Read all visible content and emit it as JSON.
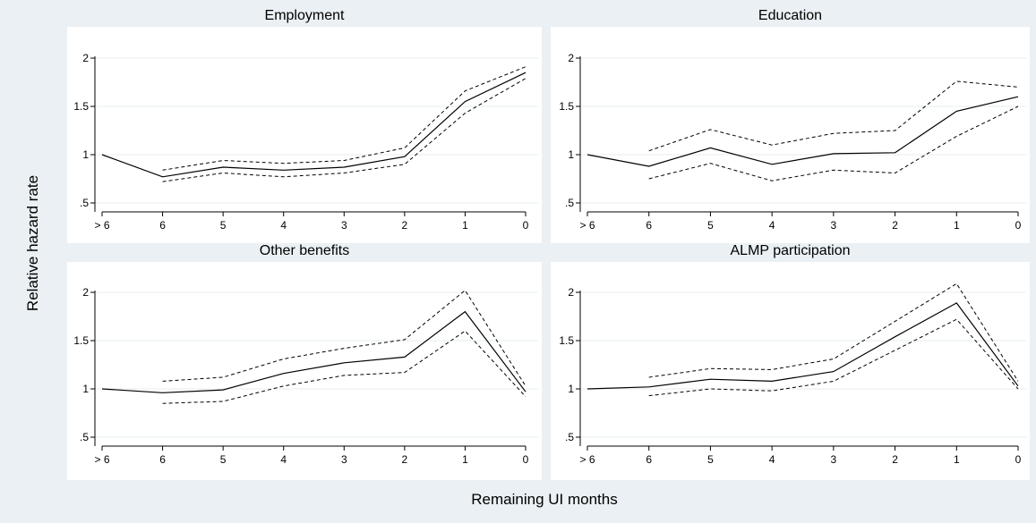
{
  "figure": {
    "ylabel": "Relative hazard rate",
    "xlabel": "Remaining UI months"
  },
  "chart_data": [
    {
      "type": "line",
      "title": "Employment",
      "categories": [
        "> 6",
        "6",
        "5",
        "4",
        "3",
        "2",
        "1",
        "0"
      ],
      "ylim": [
        0.5,
        2
      ],
      "yticks": [
        ".5",
        "1",
        "1.5",
        "2"
      ],
      "grid": true,
      "series": [
        {
          "role": "estimate",
          "values": [
            1.0,
            0.77,
            0.87,
            0.84,
            0.87,
            0.98,
            1.55,
            1.85
          ]
        },
        {
          "role": "upper-ci",
          "values": [
            null,
            0.84,
            0.94,
            0.91,
            0.94,
            1.07,
            1.66,
            1.91
          ]
        },
        {
          "role": "lower-ci",
          "values": [
            null,
            0.72,
            0.81,
            0.77,
            0.81,
            0.9,
            1.43,
            1.79
          ]
        }
      ]
    },
    {
      "type": "line",
      "title": "Education",
      "categories": [
        "> 6",
        "6",
        "5",
        "4",
        "3",
        "2",
        "1",
        "0"
      ],
      "ylim": [
        0.5,
        2
      ],
      "yticks": [
        ".5",
        "1",
        "1.5",
        "2"
      ],
      "grid": true,
      "series": [
        {
          "role": "estimate",
          "values": [
            1.0,
            0.88,
            1.07,
            0.9,
            1.01,
            1.02,
            1.45,
            1.6
          ]
        },
        {
          "role": "upper-ci",
          "values": [
            null,
            1.04,
            1.26,
            1.1,
            1.22,
            1.25,
            1.76,
            1.7
          ]
        },
        {
          "role": "lower-ci",
          "values": [
            null,
            0.75,
            0.91,
            0.73,
            0.84,
            0.81,
            1.19,
            1.5
          ]
        }
      ]
    },
    {
      "type": "line",
      "title": "Other benefits",
      "categories": [
        "> 6",
        "6",
        "5",
        "4",
        "3",
        "2",
        "1",
        "0"
      ],
      "ylim": [
        0.5,
        2
      ],
      "yticks": [
        ".5",
        "1",
        "1.5",
        "2"
      ],
      "grid": true,
      "series": [
        {
          "role": "estimate",
          "values": [
            1.0,
            0.96,
            0.99,
            1.16,
            1.27,
            1.33,
            1.8,
            0.97
          ]
        },
        {
          "role": "upper-ci",
          "values": [
            null,
            1.08,
            1.12,
            1.31,
            1.42,
            1.51,
            2.02,
            1.03
          ]
        },
        {
          "role": "lower-ci",
          "values": [
            null,
            0.85,
            0.87,
            1.03,
            1.14,
            1.17,
            1.6,
            0.92
          ]
        }
      ]
    },
    {
      "type": "line",
      "title": "ALMP participation",
      "categories": [
        "> 6",
        "6",
        "5",
        "4",
        "3",
        "2",
        "1",
        "0"
      ],
      "ylim": [
        0.5,
        2
      ],
      "yticks": [
        ".5",
        "1",
        "1.5",
        "2"
      ],
      "grid": true,
      "series": [
        {
          "role": "estimate",
          "values": [
            1.0,
            1.02,
            1.1,
            1.08,
            1.18,
            1.54,
            1.89,
            1.03
          ]
        },
        {
          "role": "upper-ci",
          "values": [
            null,
            1.12,
            1.21,
            1.2,
            1.31,
            1.7,
            2.09,
            1.08
          ]
        },
        {
          "role": "lower-ci",
          "values": [
            null,
            0.93,
            1.0,
            0.98,
            1.08,
            1.4,
            1.72,
            1.0
          ]
        }
      ]
    }
  ]
}
